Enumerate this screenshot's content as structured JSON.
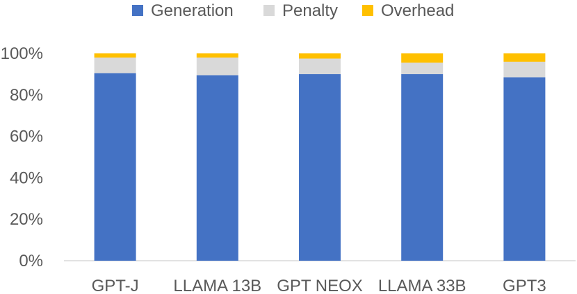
{
  "chart_data": {
    "type": "bar",
    "stacked": true,
    "categories": [
      "GPT-J",
      "LLAMA 13B",
      "GPT NEOX",
      "LLAMA 33B",
      "GPT3"
    ],
    "series": [
      {
        "name": "Generation",
        "color": "#4472c4",
        "values": [
          90.5,
          89.5,
          90.0,
          90.0,
          88.5
        ]
      },
      {
        "name": "Penalty",
        "color": "#d9d9d9",
        "values": [
          7.5,
          8.5,
          7.5,
          5.5,
          7.5
        ]
      },
      {
        "name": "Overhead",
        "color": "#ffc000",
        "values": [
          2.0,
          2.0,
          2.5,
          4.5,
          4.0
        ]
      }
    ],
    "y_ticks": [
      "0%",
      "20%",
      "40%",
      "60%",
      "80%",
      "100%"
    ],
    "ylim": [
      0,
      100
    ],
    "legend_position": "top",
    "grid": false,
    "title": "",
    "xlabel": "",
    "ylabel": ""
  }
}
